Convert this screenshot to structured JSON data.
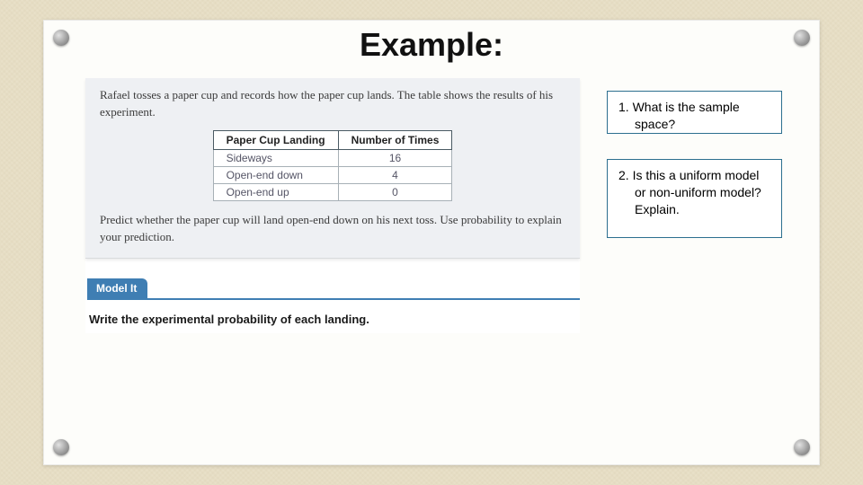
{
  "colors": {
    "background": "#e8e0c8",
    "card": "#fdfdfa",
    "snippet_panel": "#eef0f3",
    "model_it_blue": "#3f7eb3",
    "question_border": "#2c6f8f",
    "table_header_border": "#4a5a63",
    "table_cell_border": "#a7b0b6"
  },
  "title": "Example:",
  "problem": {
    "intro": "Rafael tosses a paper cup and records how the paper cup lands. The table shows the results of his experiment.",
    "predict": "Predict whether the paper cup will land open-end down on his next toss. Use probability to explain your prediction."
  },
  "table": {
    "type": "table",
    "columns": [
      "Paper Cup Landing",
      "Number of Times"
    ],
    "rows": [
      [
        "Sideways",
        "16"
      ],
      [
        "Open-end down",
        "4"
      ],
      [
        "Open-end up",
        "0"
      ]
    ],
    "column_align": [
      "left",
      "center"
    ],
    "header_fontweight": "bold",
    "fontsize": 12
  },
  "model_it": {
    "tab_label": "Model It",
    "instruction": "Write the experimental probability of each landing."
  },
  "questions": {
    "q1": {
      "number": "1.",
      "text": "What is the sample space?"
    },
    "q2": {
      "number": "2.",
      "text": "Is this a uniform model or non-uniform model? Explain."
    }
  }
}
